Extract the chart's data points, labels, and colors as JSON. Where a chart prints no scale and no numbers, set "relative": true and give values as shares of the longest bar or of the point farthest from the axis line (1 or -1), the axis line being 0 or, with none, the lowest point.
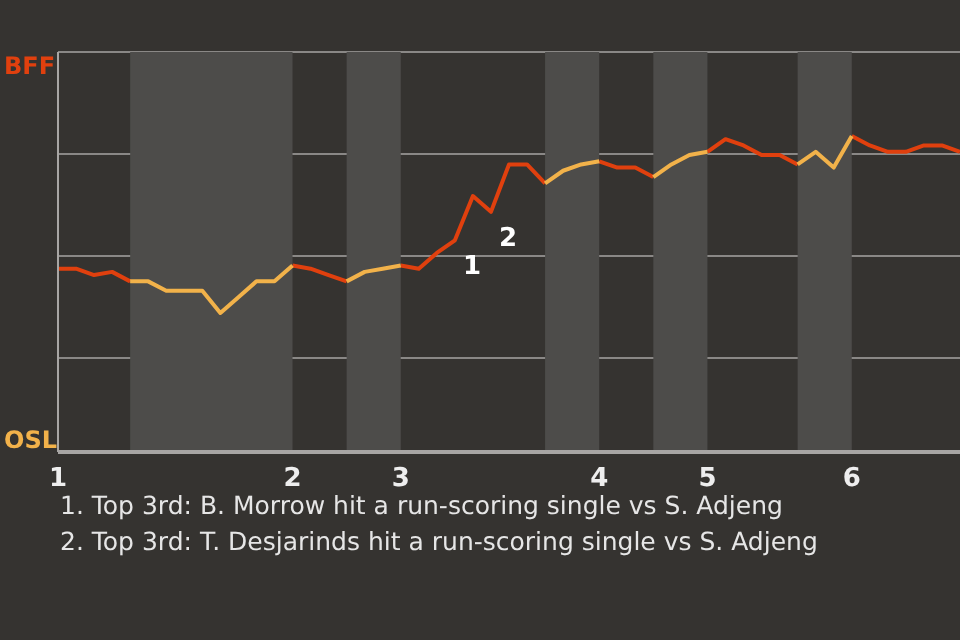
{
  "chart_data": {
    "type": "line",
    "relative": true,
    "categories": [
      "1",
      null,
      null,
      null,
      null,
      null,
      null,
      null,
      null,
      null,
      null,
      null,
      null,
      "2",
      null,
      null,
      null,
      null,
      null,
      "3",
      null,
      null,
      null,
      null,
      null,
      null,
      null,
      null,
      null,
      null,
      "4",
      null,
      null,
      null,
      null,
      null,
      "5",
      null,
      null,
      null,
      null,
      null,
      null,
      null,
      "6",
      null,
      null,
      null,
      null,
      null,
      null
    ],
    "series": [
      {
        "color": "#e0400e",
        "values": [
          0.58,
          0.58,
          0.56,
          0.57,
          0.54,
          null,
          null,
          null,
          null,
          null,
          null,
          null,
          null,
          0.59,
          0.58,
          0.56,
          0.54,
          null,
          null,
          0.59,
          0.58,
          0.63,
          0.67,
          0.81,
          0.76,
          0.91,
          0.91,
          0.85,
          null,
          null,
          0.92,
          0.9,
          0.9,
          0.87,
          null,
          null,
          0.95,
          0.99,
          0.97,
          0.94,
          0.94,
          0.91,
          null,
          null,
          1,
          0.97,
          0.95,
          0.95,
          0.97,
          0.97,
          0.95
        ]
      },
      {
        "color": "#f2b24a",
        "values": [
          null,
          null,
          null,
          null,
          0.54,
          0.54,
          0.51,
          0.51,
          0.51,
          0.44,
          0.49,
          0.54,
          0.54,
          0.59,
          null,
          null,
          0.54,
          0.57,
          0.58,
          0.59,
          null,
          null,
          null,
          null,
          null,
          null,
          null,
          0.85,
          0.89,
          0.91,
          0.92,
          null,
          null,
          0.87,
          0.91,
          0.94,
          0.95,
          null,
          null,
          null,
          null,
          0.91,
          0.95,
          0.9,
          1,
          null,
          null,
          null,
          null,
          null,
          null
        ]
      }
    ],
    "grid": "y",
    "marker": "none",
    "line_style": "solid",
    "annotations": [
      "BFF",
      "OSL",
      "1",
      "2",
      "1. Top 3rd: B. Morrow hit a run-scoring single vs S. Adjeng",
      "2. Top 3rd: T. Desjarinds hit a run-scoring single vs S. Adjeng"
    ]
  }
}
